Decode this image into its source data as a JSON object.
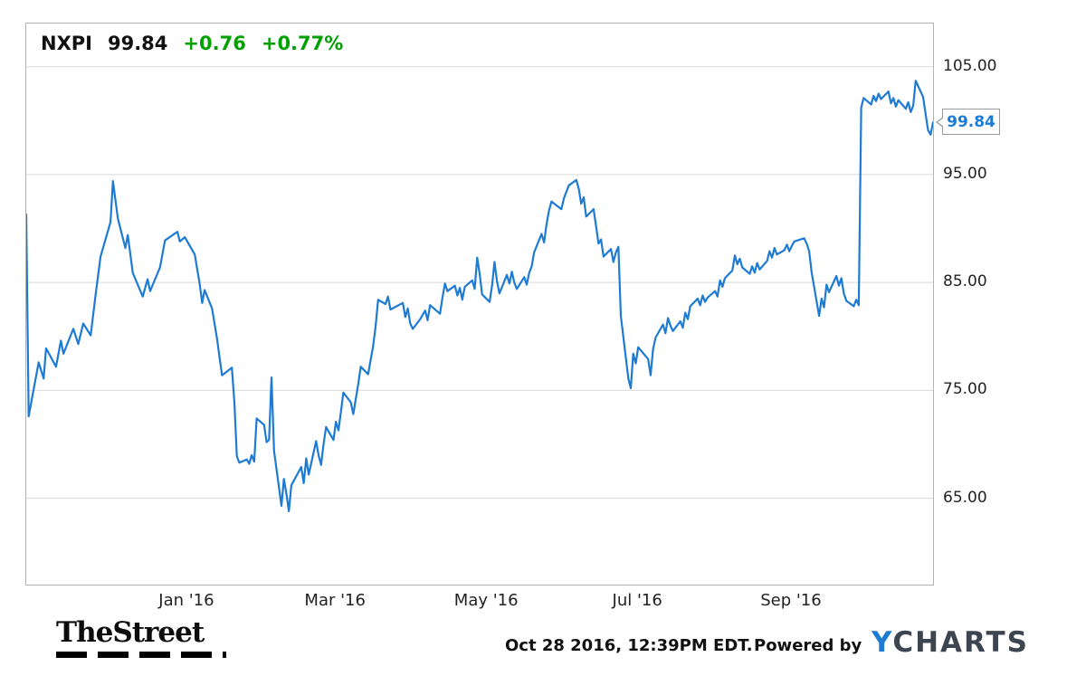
{
  "legend": {
    "symbol": "NXPI",
    "price": "99.84",
    "change": "+0.76",
    "change_pct": "+0.77%"
  },
  "callout": {
    "price": "99.84"
  },
  "footer": {
    "brand": "TheStreet",
    "timestamp": "Oct 28 2016, 12:39PM EDT.",
    "powered_by": "Powered by",
    "ycharts_y": "Y",
    "ycharts_rest": "CHARTS"
  },
  "colors": {
    "line": "#1e7bd4",
    "gain": "#00a000",
    "grid": "#d9d9d9",
    "border": "#b3b3b3",
    "ycharts_dark": "#3d4650"
  },
  "chart_data": {
    "type": "line",
    "title": "NXPI price chart",
    "xlabel": "",
    "ylabel": "",
    "grid": "horizontal",
    "legend_position": "top-left",
    "x_range": [
      "2015-10-28",
      "2016-10-28"
    ],
    "ylim": [
      57,
      109
    ],
    "yticks": [
      65,
      75,
      85,
      95,
      105
    ],
    "ytick_labels": [
      "65.00",
      "75.00",
      "85.00",
      "95.00",
      "105.00"
    ],
    "xticks": [
      {
        "date": "2016-01-01",
        "label": "Jan '16"
      },
      {
        "date": "2016-03-01",
        "label": "Mar '16"
      },
      {
        "date": "2016-05-01",
        "label": "May '16"
      },
      {
        "date": "2016-07-01",
        "label": "Jul '16"
      },
      {
        "date": "2016-09-01",
        "label": "Sep '16"
      }
    ],
    "last_price": 99.84,
    "series": [
      {
        "name": "NXPI",
        "points": [
          [
            "2015-10-28",
            91.3
          ],
          [
            "2015-10-29",
            72.6
          ],
          [
            "2015-11-02",
            77.6
          ],
          [
            "2015-11-04",
            76.1
          ],
          [
            "2015-11-05",
            78.9
          ],
          [
            "2015-11-09",
            77.2
          ],
          [
            "2015-11-11",
            79.6
          ],
          [
            "2015-11-12",
            78.4
          ],
          [
            "2015-11-16",
            80.7
          ],
          [
            "2015-11-18",
            79.3
          ],
          [
            "2015-11-20",
            81.2
          ],
          [
            "2015-11-23",
            80.1
          ],
          [
            "2015-11-25",
            83.9
          ],
          [
            "2015-11-27",
            87.4
          ],
          [
            "2015-12-01",
            90.6
          ],
          [
            "2015-12-02",
            94.4
          ],
          [
            "2015-12-03",
            92.6
          ],
          [
            "2015-12-04",
            90.9
          ],
          [
            "2015-12-07",
            88.2
          ],
          [
            "2015-12-08",
            89.4
          ],
          [
            "2015-12-10",
            85.9
          ],
          [
            "2015-12-14",
            83.7
          ],
          [
            "2015-12-16",
            85.3
          ],
          [
            "2015-12-17",
            84.2
          ],
          [
            "2015-12-21",
            86.4
          ],
          [
            "2015-12-23",
            88.9
          ],
          [
            "2015-12-28",
            89.7
          ],
          [
            "2015-12-29",
            88.8
          ],
          [
            "2015-12-31",
            89.2
          ],
          [
            "2016-01-04",
            87.6
          ],
          [
            "2016-01-06",
            84.9
          ],
          [
            "2016-01-07",
            83.1
          ],
          [
            "2016-01-08",
            84.3
          ],
          [
            "2016-01-11",
            82.6
          ],
          [
            "2016-01-13",
            79.8
          ],
          [
            "2016-01-15",
            76.4
          ],
          [
            "2016-01-19",
            77.1
          ],
          [
            "2016-01-20",
            73.9
          ],
          [
            "2016-01-21",
            68.9
          ],
          [
            "2016-01-22",
            68.3
          ],
          [
            "2016-01-25",
            68.6
          ],
          [
            "2016-01-26",
            68.2
          ],
          [
            "2016-01-27",
            69.0
          ],
          [
            "2016-01-28",
            68.4
          ],
          [
            "2016-01-29",
            72.4
          ],
          [
            "2016-02-01",
            71.8
          ],
          [
            "2016-02-02",
            70.2
          ],
          [
            "2016-02-03",
            70.4
          ],
          [
            "2016-02-04",
            76.2
          ],
          [
            "2016-02-05",
            69.4
          ],
          [
            "2016-02-08",
            64.3
          ],
          [
            "2016-02-09",
            66.8
          ],
          [
            "2016-02-10",
            65.4
          ],
          [
            "2016-02-11",
            63.8
          ],
          [
            "2016-02-12",
            66.2
          ],
          [
            "2016-02-16",
            67.9
          ],
          [
            "2016-02-17",
            66.4
          ],
          [
            "2016-02-18",
            68.7
          ],
          [
            "2016-02-19",
            67.2
          ],
          [
            "2016-02-22",
            70.3
          ],
          [
            "2016-02-23",
            69.0
          ],
          [
            "2016-02-24",
            68.1
          ],
          [
            "2016-02-25",
            70.0
          ],
          [
            "2016-02-26",
            71.6
          ],
          [
            "2016-02-29",
            70.4
          ],
          [
            "2016-03-01",
            72.1
          ],
          [
            "2016-03-02",
            71.3
          ],
          [
            "2016-03-03",
            73.0
          ],
          [
            "2016-03-04",
            74.8
          ],
          [
            "2016-03-07",
            73.9
          ],
          [
            "2016-03-08",
            72.8
          ],
          [
            "2016-03-09",
            74.2
          ],
          [
            "2016-03-10",
            75.6
          ],
          [
            "2016-03-11",
            77.2
          ],
          [
            "2016-03-14",
            76.5
          ],
          [
            "2016-03-15",
            77.8
          ],
          [
            "2016-03-16",
            79.1
          ],
          [
            "2016-03-17",
            80.9
          ],
          [
            "2016-03-18",
            83.4
          ],
          [
            "2016-03-21",
            83.0
          ],
          [
            "2016-03-22",
            83.7
          ],
          [
            "2016-03-23",
            82.5
          ],
          [
            "2016-03-28",
            83.1
          ],
          [
            "2016-03-29",
            81.8
          ],
          [
            "2016-03-30",
            82.6
          ],
          [
            "2016-03-31",
            81.2
          ],
          [
            "2016-04-01",
            80.7
          ],
          [
            "2016-04-04",
            81.6
          ],
          [
            "2016-04-06",
            82.4
          ],
          [
            "2016-04-07",
            81.5
          ],
          [
            "2016-04-08",
            82.9
          ],
          [
            "2016-04-12",
            82.1
          ],
          [
            "2016-04-13",
            83.6
          ],
          [
            "2016-04-14",
            84.9
          ],
          [
            "2016-04-15",
            84.2
          ],
          [
            "2016-04-18",
            84.7
          ],
          [
            "2016-04-19",
            83.8
          ],
          [
            "2016-04-20",
            84.5
          ],
          [
            "2016-04-21",
            83.4
          ],
          [
            "2016-04-22",
            84.6
          ],
          [
            "2016-04-25",
            85.2
          ],
          [
            "2016-04-26",
            84.4
          ],
          [
            "2016-04-27",
            87.3
          ],
          [
            "2016-04-28",
            85.8
          ],
          [
            "2016-04-29",
            83.9
          ],
          [
            "2016-05-02",
            83.2
          ],
          [
            "2016-05-03",
            84.7
          ],
          [
            "2016-05-04",
            86.9
          ],
          [
            "2016-05-05",
            85.1
          ],
          [
            "2016-05-06",
            84.0
          ],
          [
            "2016-05-09",
            85.7
          ],
          [
            "2016-05-10",
            84.9
          ],
          [
            "2016-05-11",
            86.0
          ],
          [
            "2016-05-12",
            85.0
          ],
          [
            "2016-05-13",
            84.4
          ],
          [
            "2016-05-16",
            85.5
          ],
          [
            "2016-05-17",
            84.8
          ],
          [
            "2016-05-18",
            85.9
          ],
          [
            "2016-05-19",
            86.5
          ],
          [
            "2016-05-20",
            87.8
          ],
          [
            "2016-05-23",
            89.5
          ],
          [
            "2016-05-24",
            88.7
          ],
          [
            "2016-05-25",
            90.4
          ],
          [
            "2016-05-26",
            91.7
          ],
          [
            "2016-05-27",
            92.5
          ],
          [
            "2016-05-31",
            91.8
          ],
          [
            "2016-06-01",
            92.8
          ],
          [
            "2016-06-02",
            93.4
          ],
          [
            "2016-06-03",
            94.0
          ],
          [
            "2016-06-06",
            94.5
          ],
          [
            "2016-06-07",
            93.7
          ],
          [
            "2016-06-08",
            92.3
          ],
          [
            "2016-06-09",
            92.9
          ],
          [
            "2016-06-10",
            91.1
          ],
          [
            "2016-06-13",
            91.8
          ],
          [
            "2016-06-14",
            90.2
          ],
          [
            "2016-06-15",
            88.6
          ],
          [
            "2016-06-16",
            89.0
          ],
          [
            "2016-06-17",
            87.4
          ],
          [
            "2016-06-20",
            88.1
          ],
          [
            "2016-06-21",
            86.9
          ],
          [
            "2016-06-22",
            87.8
          ],
          [
            "2016-06-23",
            88.3
          ],
          [
            "2016-06-24",
            81.9
          ],
          [
            "2016-06-27",
            76.1
          ],
          [
            "2016-06-28",
            75.2
          ],
          [
            "2016-06-29",
            78.4
          ],
          [
            "2016-06-30",
            77.5
          ],
          [
            "2016-07-01",
            79.0
          ],
          [
            "2016-07-05",
            77.9
          ],
          [
            "2016-07-06",
            76.4
          ],
          [
            "2016-07-07",
            78.8
          ],
          [
            "2016-07-08",
            79.9
          ],
          [
            "2016-07-11",
            81.1
          ],
          [
            "2016-07-12",
            80.3
          ],
          [
            "2016-07-13",
            81.7
          ],
          [
            "2016-07-14",
            81.0
          ],
          [
            "2016-07-15",
            80.5
          ],
          [
            "2016-07-18",
            81.4
          ],
          [
            "2016-07-19",
            80.8
          ],
          [
            "2016-07-20",
            82.2
          ],
          [
            "2016-07-21",
            81.6
          ],
          [
            "2016-07-22",
            82.8
          ],
          [
            "2016-07-25",
            83.5
          ],
          [
            "2016-07-26",
            82.9
          ],
          [
            "2016-07-27",
            83.8
          ],
          [
            "2016-07-28",
            83.2
          ],
          [
            "2016-07-29",
            83.6
          ],
          [
            "2016-08-01",
            84.2
          ],
          [
            "2016-08-02",
            83.7
          ],
          [
            "2016-08-03",
            85.2
          ],
          [
            "2016-08-04",
            84.6
          ],
          [
            "2016-08-05",
            85.4
          ],
          [
            "2016-08-08",
            86.1
          ],
          [
            "2016-08-09",
            87.5
          ],
          [
            "2016-08-10",
            86.7
          ],
          [
            "2016-08-11",
            87.2
          ],
          [
            "2016-08-12",
            86.4
          ],
          [
            "2016-08-15",
            85.8
          ],
          [
            "2016-08-16",
            86.5
          ],
          [
            "2016-08-17",
            85.9
          ],
          [
            "2016-08-18",
            86.8
          ],
          [
            "2016-08-19",
            86.2
          ],
          [
            "2016-08-22",
            87.0
          ],
          [
            "2016-08-23",
            87.9
          ],
          [
            "2016-08-24",
            87.3
          ],
          [
            "2016-08-25",
            88.2
          ],
          [
            "2016-08-26",
            87.6
          ],
          [
            "2016-08-29",
            88.0
          ],
          [
            "2016-08-30",
            88.5
          ],
          [
            "2016-08-31",
            87.9
          ],
          [
            "2016-09-01",
            88.4
          ],
          [
            "2016-09-02",
            88.8
          ],
          [
            "2016-09-06",
            89.1
          ],
          [
            "2016-09-07",
            88.6
          ],
          [
            "2016-09-08",
            87.9
          ],
          [
            "2016-09-09",
            85.9
          ],
          [
            "2016-09-12",
            81.9
          ],
          [
            "2016-09-13",
            83.5
          ],
          [
            "2016-09-14",
            82.7
          ],
          [
            "2016-09-15",
            84.8
          ],
          [
            "2016-09-16",
            84.1
          ],
          [
            "2016-09-19",
            85.6
          ],
          [
            "2016-09-20",
            84.7
          ],
          [
            "2016-09-21",
            85.4
          ],
          [
            "2016-09-22",
            84.0
          ],
          [
            "2016-09-23",
            83.3
          ],
          [
            "2016-09-26",
            82.8
          ],
          [
            "2016-09-27",
            83.4
          ],
          [
            "2016-09-28",
            82.9
          ],
          [
            "2016-09-29",
            101.2
          ],
          [
            "2016-09-30",
            102.1
          ],
          [
            "2016-10-03",
            101.5
          ],
          [
            "2016-10-04",
            102.3
          ],
          [
            "2016-10-05",
            101.8
          ],
          [
            "2016-10-06",
            102.5
          ],
          [
            "2016-10-07",
            102.0
          ],
          [
            "2016-10-10",
            102.7
          ],
          [
            "2016-10-11",
            101.6
          ],
          [
            "2016-10-12",
            102.1
          ],
          [
            "2016-10-13",
            101.3
          ],
          [
            "2016-10-14",
            101.9
          ],
          [
            "2016-10-17",
            101.1
          ],
          [
            "2016-10-18",
            101.7
          ],
          [
            "2016-10-19",
            100.8
          ],
          [
            "2016-10-20",
            101.4
          ],
          [
            "2016-10-21",
            103.7
          ],
          [
            "2016-10-24",
            102.2
          ],
          [
            "2016-10-25",
            100.6
          ],
          [
            "2016-10-26",
            99.1
          ],
          [
            "2016-10-27",
            98.7
          ],
          [
            "2016-10-28",
            99.84
          ]
        ]
      }
    ]
  }
}
